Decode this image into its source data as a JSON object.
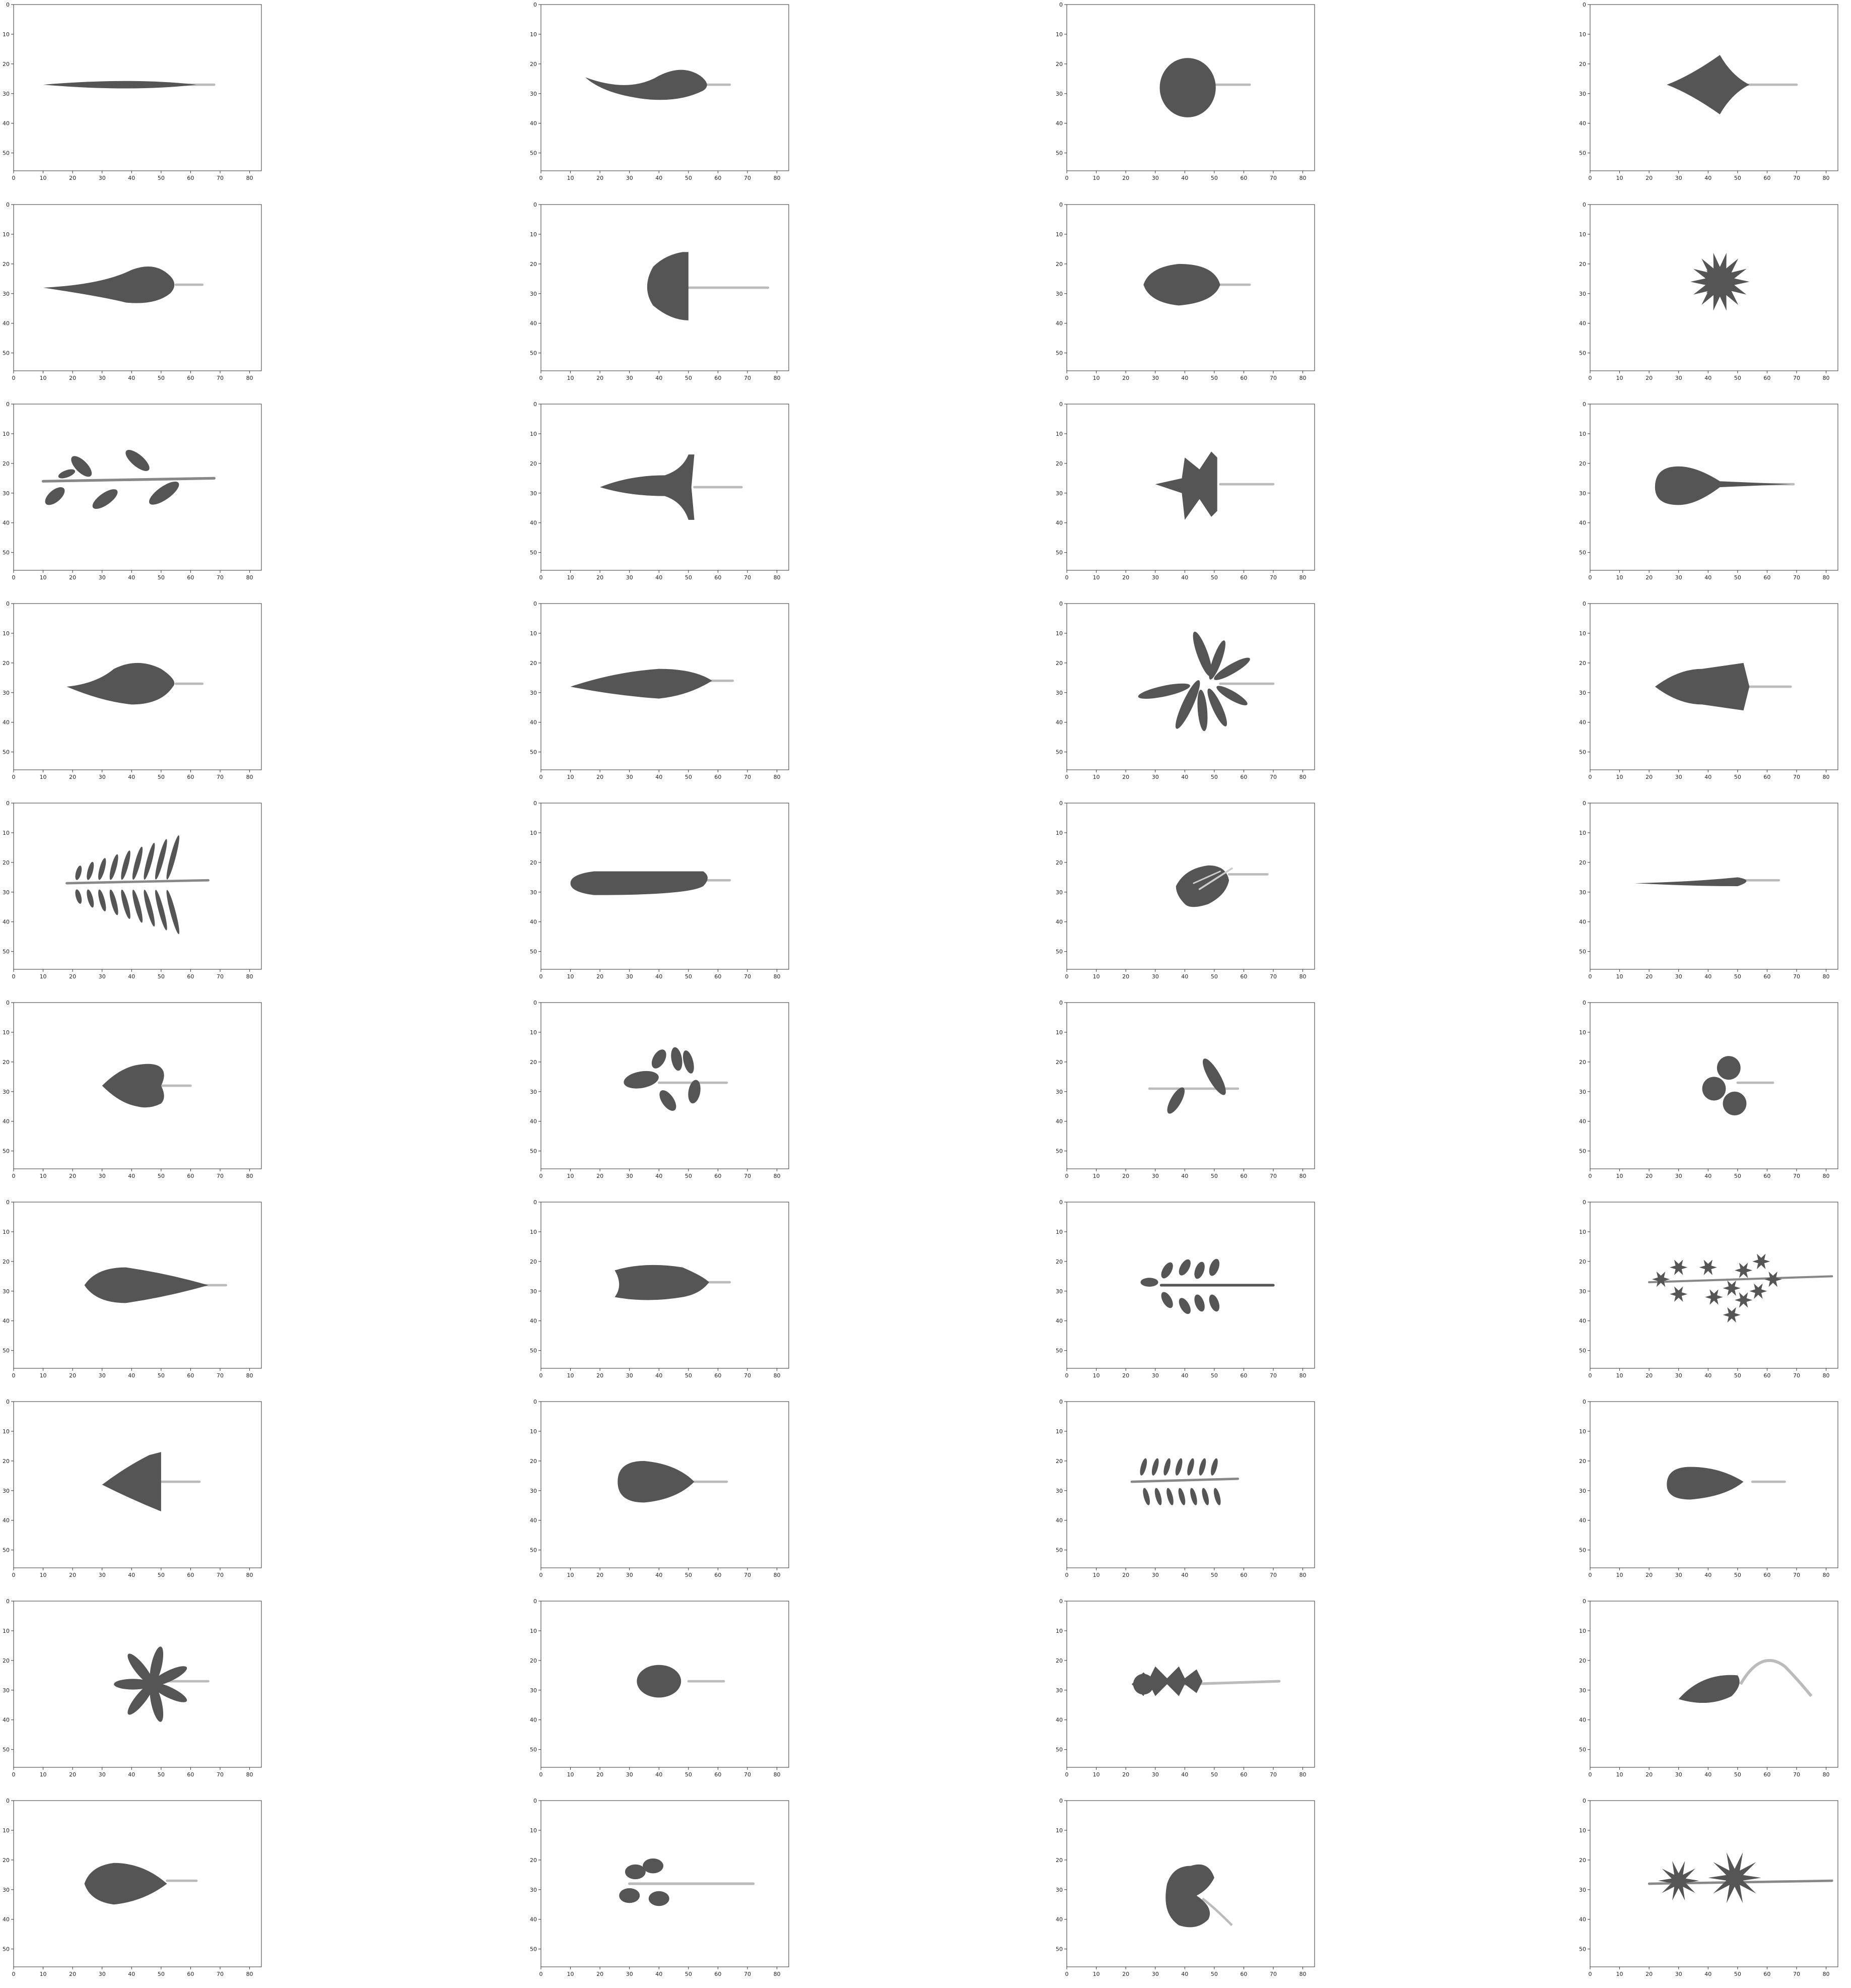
{
  "figure": {
    "rows": 10,
    "cols": 4,
    "x_ticks": [
      "0",
      "10",
      "20",
      "30",
      "40",
      "50",
      "60",
      "70",
      "80"
    ],
    "y_ticks": [
      "0",
      "10",
      "20",
      "30",
      "40",
      "50"
    ],
    "x_range": [
      0,
      84
    ],
    "y_range": [
      56,
      0
    ],
    "colors": {
      "leaf": "#555555",
      "stem": "#bbbbbb",
      "frame": "#333333",
      "background": "#ffffff"
    }
  },
  "panels": [
    {
      "shape": "thin-line-leaf"
    },
    {
      "shape": "curved-lanceolate-leaf"
    },
    {
      "shape": "round-leaf"
    },
    {
      "shape": "rhombic-leaf"
    },
    {
      "shape": "acuminate-leaf"
    },
    {
      "shape": "truncate-base-leaf"
    },
    {
      "shape": "oval-leaf"
    },
    {
      "shape": "rosette-leaf"
    },
    {
      "shape": "alternate-compound-leaf"
    },
    {
      "shape": "hastate-leaf"
    },
    {
      "shape": "star-leaf"
    },
    {
      "shape": "spatulate-leaf"
    },
    {
      "shape": "ovate-leaf"
    },
    {
      "shape": "lanceolate-leaf"
    },
    {
      "shape": "palmate-compound-leaf"
    },
    {
      "shape": "sagittate-leaf"
    },
    {
      "shape": "fern-frond-leaf"
    },
    {
      "shape": "oblong-leaf"
    },
    {
      "shape": "cordate-veined-leaf"
    },
    {
      "shape": "narrow-leaf"
    },
    {
      "shape": "heart-leaf"
    },
    {
      "shape": "pinnate-lobed-leaf"
    },
    {
      "shape": "two-leaflet-leaf"
    },
    {
      "shape": "trefoil-leaf"
    },
    {
      "shape": "obovate-leaf"
    },
    {
      "shape": "notched-oblong-leaf"
    },
    {
      "shape": "pinnate-leaflets-leaf"
    },
    {
      "shape": "bipinnate-rosettes-leaf"
    },
    {
      "shape": "deltoid-leaf"
    },
    {
      "shape": "broad-ovate-leaf"
    },
    {
      "shape": "fishbone-compound-leaf"
    },
    {
      "shape": "truncate-oblong-leaf"
    },
    {
      "shape": "palmate-star-leaf"
    },
    {
      "shape": "elliptic-leaf"
    },
    {
      "shape": "runcinate-leaf"
    },
    {
      "shape": "hooked-stem-leaf"
    },
    {
      "shape": "elliptic-petiole-leaf"
    },
    {
      "shape": "four-leaflet-leaf"
    },
    {
      "shape": "reniform-leaf"
    },
    {
      "shape": "double-star-leaf"
    }
  ]
}
